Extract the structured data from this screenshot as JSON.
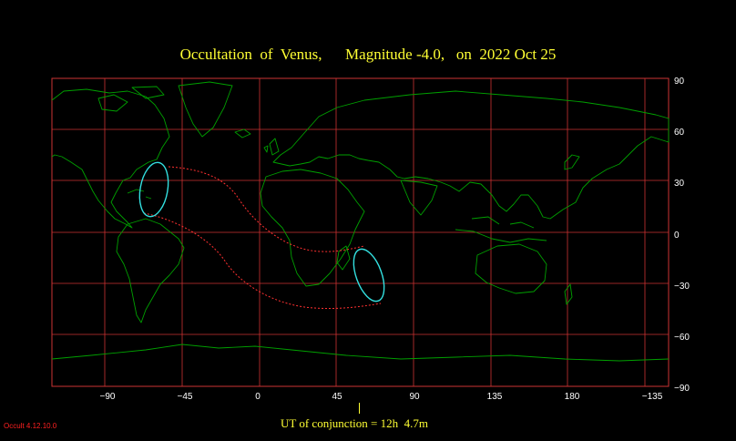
{
  "title": "Occultation  of  Venus,      Magnitude -4.0,   on  2022 Oct 25",
  "lat_labels": [
    "90",
    "60",
    "30",
    "0",
    "−30",
    "−60",
    "−90"
  ],
  "lon_labels": [
    "−90",
    "−45",
    "0",
    "45",
    "90",
    "135",
    "180",
    "−135"
  ],
  "conjunction": "UT of conjunction = 12h  4.7m",
  "version": "Occult 4.12.10.0",
  "colors": {
    "grid": "#cc3333",
    "coast": "#00a000",
    "limit": "#ff3030",
    "horizon": "#33e0e0",
    "text": "#ffff33"
  }
}
